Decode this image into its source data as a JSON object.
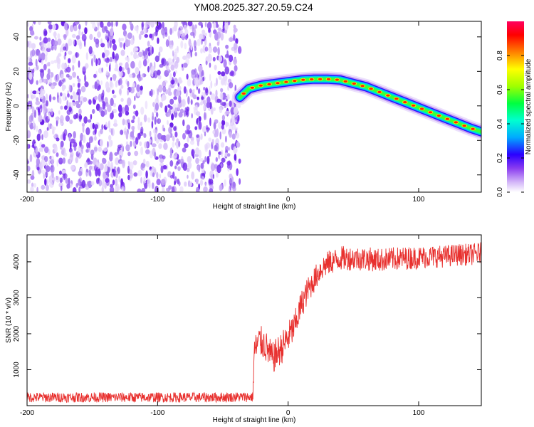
{
  "title": "YM08.2025.327.20.59.C24",
  "colors": {
    "snr_line": "#e8302e",
    "noise_speckle": "#7a2ff0",
    "ridge_core": "#ff2a00"
  },
  "chart_data": [
    {
      "type": "heatmap",
      "name": "spectrogram",
      "xlabel": "Height of straight line (km)",
      "ylabel": "Frequency (Hz)",
      "xlim": [
        -200,
        148
      ],
      "ylim": [
        -50,
        49
      ],
      "x_ticks": [
        -200,
        -100,
        0,
        100
      ],
      "y_ticks": [
        -40,
        -20,
        0,
        20,
        40
      ],
      "noise_region_x": [
        -200,
        -37
      ],
      "ridge": {
        "description": "frequency peak vs height",
        "x": [
          -37,
          -30,
          -20,
          -10,
          0,
          10,
          20,
          30,
          40,
          50,
          60,
          70,
          80,
          90,
          100,
          110,
          120,
          130,
          140,
          148
        ],
        "y": [
          5,
          10,
          12,
          13,
          14,
          15,
          15.5,
          15.5,
          15,
          13,
          11,
          8,
          5,
          2,
          -1,
          -4,
          -7,
          -10,
          -13,
          -15
        ]
      },
      "colorbar": {
        "label": "Normalized spectral amplitude",
        "range": [
          0.0,
          1.0
        ],
        "ticks": [
          "0.0",
          "0.2",
          "0.4",
          "0.6",
          "0.8"
        ],
        "colors": [
          "#ffffff",
          "#b98cf5",
          "#7a2ff0",
          "#2a00ff",
          "#00aaff",
          "#00ffd0",
          "#00ff40",
          "#a0ff00",
          "#ffff00",
          "#ff8000",
          "#ff0000",
          "#ff0060"
        ]
      }
    },
    {
      "type": "line",
      "name": "snr",
      "xlabel": "Height of straight line (km)",
      "ylabel": "SNR (10 * v/v)",
      "xlim": [
        -200,
        148
      ],
      "ylim": [
        0,
        4750
      ],
      "x_ticks": [
        -200,
        -100,
        0,
        100
      ],
      "y_ticks": [
        1000,
        2000,
        3000,
        4000
      ],
      "trend": {
        "x": [
          -200,
          -180,
          -160,
          -140,
          -120,
          -100,
          -80,
          -60,
          -40,
          -27,
          -26,
          -22,
          -18,
          -15,
          -12,
          -10,
          -5,
          0,
          5,
          10,
          15,
          20,
          25,
          30,
          40,
          50,
          60,
          70,
          80,
          90,
          100,
          110,
          120,
          130,
          140,
          148
        ],
        "y": [
          230,
          230,
          230,
          230,
          230,
          230,
          230,
          230,
          240,
          240,
          1500,
          1800,
          1700,
          1500,
          1300,
          1400,
          1600,
          1900,
          2200,
          2800,
          3200,
          3500,
          3800,
          3950,
          4100,
          4100,
          4080,
          4050,
          4080,
          4100,
          4120,
          4150,
          4150,
          4200,
          4200,
          4250
        ]
      },
      "noise_amplitude": {
        "x": [
          -200,
          -27,
          -26,
          0,
          20,
          148
        ],
        "y": [
          140,
          140,
          450,
          450,
          350,
          300
        ]
      }
    }
  ]
}
